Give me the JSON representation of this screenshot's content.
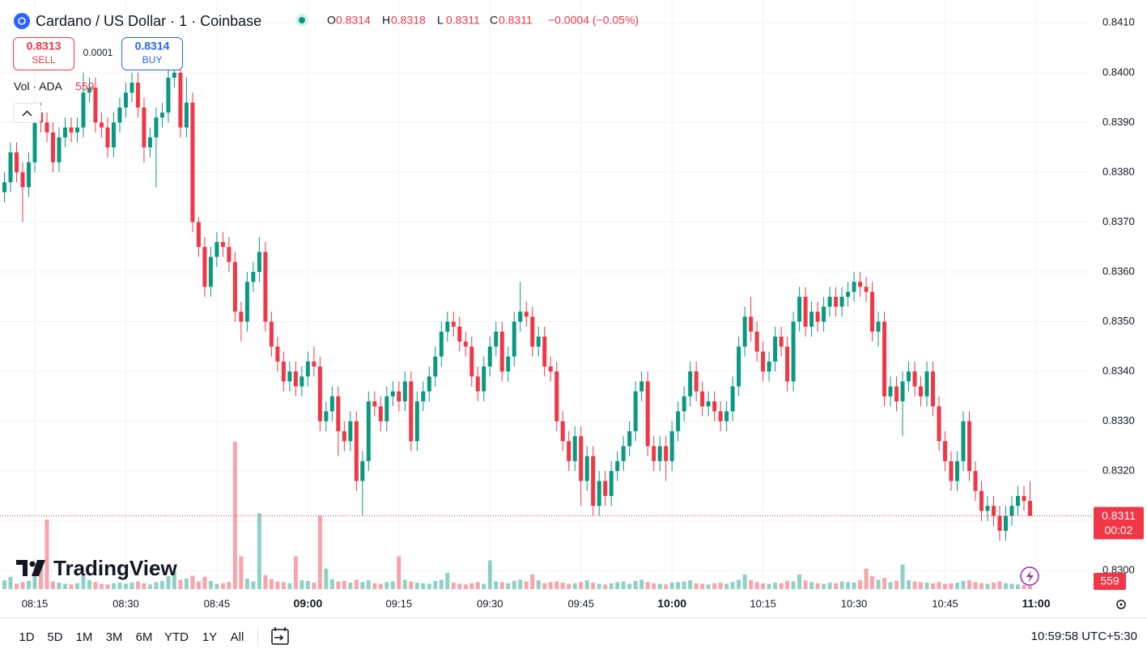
{
  "chart_data": {
    "type": "candlestick",
    "title": "Cardano / US Dollar · 1 · Coinbase",
    "up_color": "#089981",
    "down_color": "#f23645",
    "ylim": [
      0.82963,
      0.84146
    ],
    "yticks": [
      {
        "value": 0.83,
        "label": "0.8300"
      },
      {
        "value": 0.831,
        "label": "0.8310"
      },
      {
        "value": 0.832,
        "label": "0.8320"
      },
      {
        "value": 0.833,
        "label": "0.8330"
      },
      {
        "value": 0.834,
        "label": "0.8340"
      },
      {
        "value": 0.835,
        "label": "0.8350"
      },
      {
        "value": 0.836,
        "label": "0.8360"
      },
      {
        "value": 0.837,
        "label": "0.8370"
      },
      {
        "value": 0.838,
        "label": "0.8380"
      },
      {
        "value": 0.839,
        "label": "0.8390"
      },
      {
        "value": 0.84,
        "label": "0.8400"
      },
      {
        "value": 0.841,
        "label": "0.8410"
      }
    ],
    "grid": true,
    "categories": [
      null,
      null,
      null,
      null,
      null,
      "08:15",
      null,
      null,
      null,
      null,
      null,
      null,
      null,
      null,
      null,
      null,
      null,
      null,
      null,
      null,
      "08:30",
      null,
      null,
      null,
      null,
      null,
      null,
      null,
      null,
      null,
      null,
      null,
      null,
      null,
      null,
      "08:45",
      null,
      null,
      null,
      null,
      null,
      null,
      null,
      null,
      null,
      null,
      null,
      null,
      null,
      null,
      "09:00",
      null,
      null,
      null,
      null,
      null,
      null,
      null,
      null,
      null,
      null,
      null,
      null,
      null,
      null,
      "09:15",
      null,
      null,
      null,
      null,
      null,
      null,
      null,
      null,
      null,
      null,
      null,
      null,
      null,
      null,
      "09:30",
      null,
      null,
      null,
      null,
      null,
      null,
      null,
      null,
      null,
      null,
      null,
      null,
      null,
      null,
      "09:45",
      null,
      null,
      null,
      null,
      null,
      null,
      null,
      null,
      null,
      null,
      null,
      null,
      null,
      null,
      "10:00",
      null,
      null,
      null,
      null,
      null,
      null,
      null,
      null,
      null,
      null,
      null,
      null,
      null,
      null,
      "10:15",
      null,
      null,
      null,
      null,
      null,
      null,
      null,
      null,
      null,
      null,
      null,
      null,
      null,
      null,
      "10:30",
      null,
      null,
      null,
      null,
      null,
      null,
      null,
      null,
      null,
      null,
      null,
      null,
      null,
      null,
      "10:45",
      null,
      null,
      null,
      null,
      null,
      null,
      null,
      null,
      null,
      null,
      null,
      null,
      null,
      null,
      "11:00"
    ],
    "open": [
      0.8376,
      0.8378,
      0.8384,
      0.838,
      0.8377,
      0.8382,
      0.8392,
      0.839,
      0.8388,
      0.8382,
      0.8387,
      0.8389,
      0.8388,
      0.8389,
      0.8396,
      0.8397,
      0.839,
      0.8389,
      0.8385,
      0.839,
      0.8393,
      0.8396,
      0.8398,
      0.8393,
      0.8385,
      0.8387,
      0.8391,
      0.8392,
      0.8399,
      0.84,
      0.8389,
      0.8394,
      0.837,
      0.8365,
      0.8357,
      0.8363,
      0.8366,
      0.8365,
      0.8362,
      0.8352,
      0.835,
      0.8358,
      0.836,
      0.8364,
      0.835,
      0.8345,
      0.8342,
      0.8338,
      0.834,
      0.8337,
      0.8339,
      0.8342,
      0.8341,
      0.833,
      0.8332,
      0.8335,
      0.8328,
      0.8326,
      0.833,
      0.8318,
      0.8322,
      0.8334,
      0.8333,
      0.833,
      0.8335,
      0.8336,
      0.8334,
      0.8338,
      0.8326,
      0.8334,
      0.8336,
      0.8339,
      0.8343,
      0.8348,
      0.835,
      0.8349,
      0.8346,
      0.8345,
      0.8339,
      0.8336,
      0.8341,
      0.8345,
      0.8348,
      0.834,
      0.8343,
      0.835,
      0.8352,
      0.8351,
      0.8345,
      0.8347,
      0.8341,
      0.834,
      0.833,
      0.8326,
      0.8322,
      0.8327,
      0.8318,
      0.8323,
      0.8313,
      0.8318,
      0.8315,
      0.832,
      0.8322,
      0.8325,
      0.8328,
      0.8336,
      0.8338,
      0.8325,
      0.8322,
      0.8325,
      0.8322,
      0.8328,
      0.8332,
      0.8335,
      0.834,
      0.8336,
      0.8333,
      0.8334,
      0.8332,
      0.833,
      0.8332,
      0.8337,
      0.8345,
      0.8351,
      0.8348,
      0.8344,
      0.834,
      0.8342,
      0.8347,
      0.8345,
      0.8338,
      0.835,
      0.8355,
      0.8349,
      0.8352,
      0.835,
      0.8353,
      0.8355,
      0.8353,
      0.8355,
      0.8356,
      0.8358,
      0.8357,
      0.8356,
      0.8348,
      0.835,
      0.8335,
      0.8337,
      0.8334,
      0.8338,
      0.834,
      0.8337,
      0.8335,
      0.834,
      0.8333,
      0.8326,
      0.8322,
      0.8318,
      0.8322,
      0.833,
      0.832,
      0.8316,
      0.8312,
      0.8313,
      0.8311,
      0.8308,
      0.8311,
      0.8313,
      0.8315,
      0.8314,
      null
    ],
    "high": [
      0.838,
      0.8386,
      0.8386,
      0.8382,
      0.8384,
      0.8394,
      0.8394,
      0.8392,
      0.839,
      0.8389,
      0.8391,
      0.8391,
      0.8391,
      0.84,
      0.8399,
      0.8399,
      0.8392,
      0.8391,
      0.8392,
      0.8395,
      0.8398,
      0.84,
      0.84,
      0.8395,
      0.8389,
      0.8393,
      0.8394,
      0.8401,
      0.8402,
      0.8402,
      0.8399,
      0.8396,
      0.8371,
      0.8367,
      0.8365,
      0.8368,
      0.8368,
      0.8367,
      0.8364,
      0.8354,
      0.836,
      0.8362,
      0.8367,
      0.8366,
      0.8352,
      0.8347,
      0.8344,
      0.8342,
      0.8342,
      0.8341,
      0.8344,
      0.8345,
      0.8343,
      0.8334,
      0.8337,
      0.8337,
      0.833,
      0.8332,
      0.8332,
      0.8324,
      0.8336,
      0.8336,
      0.8335,
      0.8337,
      0.8338,
      0.8338,
      0.834,
      0.834,
      0.8336,
      0.8338,
      0.8341,
      0.8345,
      0.835,
      0.8352,
      0.8352,
      0.8351,
      0.8348,
      0.8347,
      0.8341,
      0.8343,
      0.8347,
      0.835,
      0.835,
      0.8345,
      0.8352,
      0.8358,
      0.8354,
      0.8353,
      0.8349,
      0.8349,
      0.8343,
      0.8342,
      0.8332,
      0.8328,
      0.8329,
      0.8329,
      0.8325,
      0.8325,
      0.832,
      0.832,
      0.8322,
      0.8324,
      0.8327,
      0.833,
      0.8338,
      0.834,
      0.834,
      0.8327,
      0.8327,
      0.8327,
      0.833,
      0.8334,
      0.8337,
      0.8342,
      0.8342,
      0.8338,
      0.8336,
      0.8336,
      0.8334,
      0.8334,
      0.8339,
      0.8347,
      0.8353,
      0.8355,
      0.835,
      0.8346,
      0.8344,
      0.8349,
      0.8349,
      0.8347,
      0.8352,
      0.8357,
      0.8357,
      0.8354,
      0.8354,
      0.8355,
      0.8357,
      0.8357,
      0.8357,
      0.8358,
      0.836,
      0.836,
      0.8359,
      0.8358,
      0.8352,
      0.8352,
      0.8339,
      0.8339,
      0.834,
      0.8342,
      0.8342,
      0.8339,
      0.8342,
      0.8342,
      0.8335,
      0.8328,
      0.8324,
      0.8324,
      0.8332,
      0.8332,
      0.8322,
      0.8318,
      0.8315,
      0.8315,
      0.8313,
      0.8313,
      0.8315,
      0.8317,
      0.8317,
      0.8318,
      null
    ],
    "low": [
      0.8374,
      0.8376,
      0.8378,
      0.837,
      0.8375,
      0.838,
      0.8388,
      0.8386,
      0.838,
      0.838,
      0.8385,
      0.8386,
      0.8386,
      0.8387,
      0.8394,
      0.8388,
      0.8387,
      0.8383,
      0.8383,
      0.8388,
      0.8391,
      0.8394,
      0.8391,
      0.8382,
      0.8383,
      0.8377,
      0.8389,
      0.839,
      0.8397,
      0.8387,
      0.8387,
      0.8368,
      0.8363,
      0.8355,
      0.8355,
      0.8361,
      0.8363,
      0.836,
      0.835,
      0.8346,
      0.8348,
      0.8356,
      0.8358,
      0.8348,
      0.8343,
      0.834,
      0.8336,
      0.8336,
      0.8335,
      0.8335,
      0.8337,
      0.8339,
      0.8328,
      0.8328,
      0.833,
      0.8323,
      0.8324,
      0.8324,
      0.8316,
      0.8311,
      0.832,
      0.8331,
      0.8328,
      0.8328,
      0.8333,
      0.8332,
      0.8332,
      0.8324,
      0.8324,
      0.8332,
      0.8334,
      0.8337,
      0.8341,
      0.8346,
      0.8347,
      0.8344,
      0.8343,
      0.8337,
      0.8334,
      0.8334,
      0.8339,
      0.8343,
      0.8338,
      0.8338,
      0.8341,
      0.8348,
      0.8349,
      0.8343,
      0.8343,
      0.8339,
      0.8338,
      0.8328,
      0.8324,
      0.832,
      0.832,
      0.8313,
      0.8316,
      0.8311,
      0.8311,
      0.8313,
      0.8313,
      0.8318,
      0.832,
      0.8323,
      0.8326,
      0.8334,
      0.8323,
      0.832,
      0.832,
      0.8318,
      0.832,
      0.8326,
      0.833,
      0.8333,
      0.8334,
      0.8331,
      0.8331,
      0.833,
      0.8328,
      0.8328,
      0.833,
      0.8335,
      0.8343,
      0.8346,
      0.8342,
      0.8338,
      0.8338,
      0.834,
      0.8343,
      0.8336,
      0.8336,
      0.8348,
      0.8347,
      0.8347,
      0.8348,
      0.8348,
      0.8351,
      0.8351,
      0.8351,
      0.8353,
      0.8354,
      0.8355,
      0.8354,
      0.8346,
      0.8345,
      0.8333,
      0.8333,
      0.8332,
      0.8327,
      0.8336,
      0.8335,
      0.8333,
      0.8333,
      0.8331,
      0.8324,
      0.832,
      0.8316,
      0.8316,
      0.832,
      0.8318,
      0.8314,
      0.831,
      0.831,
      0.8309,
      0.8306,
      0.8306,
      0.8309,
      0.8311,
      0.8312,
      0.8311,
      null
    ],
    "close": [
      0.8378,
      0.8384,
      0.838,
      0.8377,
      0.8382,
      0.8392,
      0.839,
      0.8388,
      0.8382,
      0.8387,
      0.8389,
      0.8388,
      0.8389,
      0.8396,
      0.8397,
      0.839,
      0.8389,
      0.8385,
      0.839,
      0.8393,
      0.8396,
      0.8398,
      0.8393,
      0.8385,
      0.8387,
      0.8391,
      0.8392,
      0.8399,
      0.84,
      0.8389,
      0.8394,
      0.837,
      0.8365,
      0.8357,
      0.8363,
      0.8366,
      0.8365,
      0.8362,
      0.8352,
      0.835,
      0.8358,
      0.836,
      0.8364,
      0.835,
      0.8345,
      0.8342,
      0.8338,
      0.834,
      0.8337,
      0.8339,
      0.8342,
      0.8341,
      0.833,
      0.8332,
      0.8335,
      0.8328,
      0.8326,
      0.833,
      0.8318,
      0.8322,
      0.8334,
      0.8333,
      0.833,
      0.8335,
      0.8336,
      0.8334,
      0.8338,
      0.8326,
      0.8334,
      0.8336,
      0.8339,
      0.8343,
      0.8348,
      0.835,
      0.8349,
      0.8346,
      0.8345,
      0.8339,
      0.8336,
      0.8341,
      0.8345,
      0.8348,
      0.834,
      0.8343,
      0.835,
      0.8352,
      0.8351,
      0.8345,
      0.8347,
      0.8341,
      0.834,
      0.833,
      0.8326,
      0.8322,
      0.8327,
      0.8318,
      0.8323,
      0.8313,
      0.8318,
      0.8315,
      0.832,
      0.8322,
      0.8325,
      0.8328,
      0.8336,
      0.8338,
      0.8325,
      0.8322,
      0.8325,
      0.8322,
      0.8328,
      0.8332,
      0.8335,
      0.834,
      0.8336,
      0.8333,
      0.8334,
      0.8332,
      0.833,
      0.8332,
      0.8337,
      0.8345,
      0.8351,
      0.8348,
      0.8344,
      0.834,
      0.8342,
      0.8347,
      0.8345,
      0.8338,
      0.835,
      0.8355,
      0.8349,
      0.8352,
      0.835,
      0.8353,
      0.8355,
      0.8353,
      0.8355,
      0.8356,
      0.8358,
      0.8357,
      0.8356,
      0.8348,
      0.835,
      0.8335,
      0.8337,
      0.8334,
      0.8338,
      0.834,
      0.8337,
      0.8335,
      0.834,
      0.8333,
      0.8326,
      0.8322,
      0.8318,
      0.8322,
      0.833,
      0.832,
      0.8316,
      0.8312,
      0.8313,
      0.8311,
      0.8308,
      0.8311,
      0.8313,
      0.8315,
      0.8314,
      0.8311,
      null
    ],
    "volume": [
      1500,
      2100,
      900,
      1200,
      1400,
      2600,
      4200,
      11900,
      1300,
      1100,
      900,
      800,
      1000,
      2400,
      1500,
      1200,
      900,
      800,
      1000,
      1100,
      900,
      1100,
      1300,
      1000,
      800,
      1200,
      1400,
      2200,
      3000,
      1600,
      1800,
      2300,
      1300,
      2100,
      1400,
      900,
      1000,
      1200,
      25200,
      5600,
      1800,
      1300,
      13000,
      2400,
      1700,
      1300,
      1200,
      1000,
      5600,
      1500,
      1400,
      1100,
      12600,
      3500,
      1700,
      1300,
      1400,
      1100,
      1600,
      1200,
      1500,
      1000,
      900,
      1200,
      1300,
      5600,
      1600,
      1300,
      1100,
      1000,
      900,
      1400,
      1600,
      2800,
      1100,
      900,
      800,
      1000,
      1200,
      900,
      4900,
      1300,
      1200,
      1000,
      1400,
      1600,
      1300,
      2500,
      1500,
      1000,
      1200,
      1300,
      1100,
      900,
      1000,
      1200,
      1500,
      1100,
      900,
      800,
      1000,
      1200,
      1300,
      900,
      1400,
      1600,
      1200,
      1000,
      900,
      800,
      1100,
      1200,
      1300,
      1500,
      1000,
      900,
      800,
      1000,
      1100,
      900,
      1200,
      1600,
      2500,
      1500,
      1200,
      1000,
      900,
      1100,
      1000,
      1400,
      1300,
      2500,
      1500,
      1200,
      1000,
      900,
      1100,
      1000,
      1300,
      1200,
      1100,
      1500,
      3500,
      2200,
      1600,
      1900,
      1200,
      1400,
      4200,
      1500,
      1300,
      1200,
      1100,
      1000,
      1200,
      900,
      1000,
      1100,
      1400,
      1500,
      1200,
      1000,
      900,
      1100,
      1300,
      1000,
      900,
      800,
      700,
      559,
      null
    ],
    "last_price": 0.8311,
    "countdown": "00:02"
  },
  "ui": {
    "header": {
      "ohlc": [
        {
          "label": "O",
          "value": 0.8314
        },
        {
          "label": "H",
          "value": 0.8318
        },
        {
          "label": "L",
          "value": 0.8311
        },
        {
          "label": "C",
          "value": 0.8311
        }
      ],
      "change": "−0.0004 (−0.05%)"
    },
    "sell": {
      "price": 0.8313,
      "label": "SELL"
    },
    "spread": 0.0001,
    "buy": {
      "price": 0.8314,
      "label": "BUY"
    },
    "volume_legend": "Vol · ADA",
    "logo": "TradingView",
    "ranges": [
      "1D",
      "5D",
      "1M",
      "3M",
      "6M",
      "YTD",
      "1Y",
      "All"
    ],
    "clock": "10:59:58 UTC+5:30"
  }
}
